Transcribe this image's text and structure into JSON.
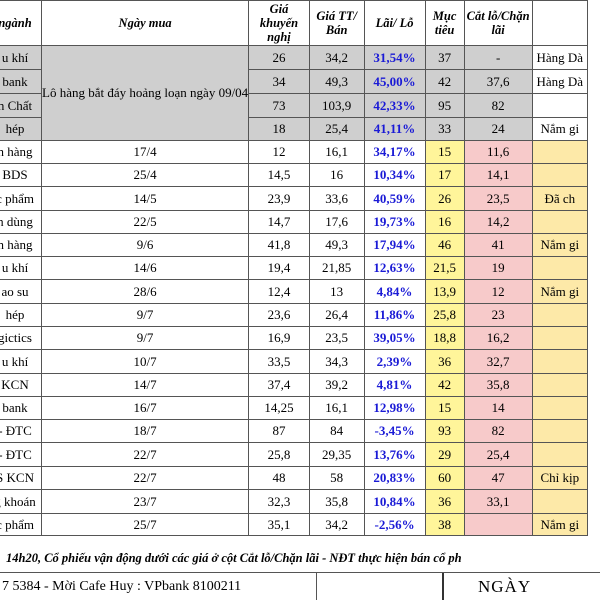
{
  "headers": [
    "ngành",
    "Ngày mua",
    "Giá khuyến nghị",
    "Giá TT/ Bán",
    "Lãi/ Lỗ",
    "Mục tiêu",
    "Cắt lỗ/Chặn lãi",
    ""
  ],
  "lot_note": "Lô hàng bắt đáy hoảng loạn ngày 09/04",
  "rows": [
    {
      "name": "u khí",
      "date": "",
      "rec": "26",
      "price": "34,2",
      "pl": "31,54%",
      "target": "37",
      "stop": "-",
      "note": "Hàng Dà"
    },
    {
      "name": "bank",
      "date": "",
      "rec": "34",
      "price": "49,3",
      "pl": "45,00%",
      "target": "42",
      "stop": "37,6",
      "note": "Hàng Dà"
    },
    {
      "name": "n Chất",
      "date": "",
      "rec": "73",
      "price": "103,9",
      "pl": "42,33%",
      "target": "95",
      "stop": "82",
      "note": ""
    },
    {
      "name": "hép",
      "date": "",
      "rec": "18",
      "price": "25,4",
      "pl": "41,11%",
      "target": "33",
      "stop": "24",
      "note": "Nắm gi"
    },
    {
      "name": "n hàng",
      "date": "17/4",
      "rec": "12",
      "price": "16,1",
      "pl": "34,17%",
      "target": "15",
      "stop": "11,6",
      "note": ""
    },
    {
      "name": "BDS",
      "date": "25/4",
      "rec": "14,5",
      "price": "16",
      "pl": "10,34%",
      "target": "17",
      "stop": "14,1",
      "note": ""
    },
    {
      "name": "c phẩm",
      "date": "14/5",
      "rec": "23,9",
      "price": "33,6",
      "pl": "40,59%",
      "target": "26",
      "stop": "23,5",
      "note": "Đã ch"
    },
    {
      "name": "n dùng",
      "date": "22/5",
      "rec": "14,7",
      "price": "17,6",
      "pl": "19,73%",
      "target": "16",
      "stop": "14,2",
      "note": ""
    },
    {
      "name": "n hàng",
      "date": "9/6",
      "rec": "41,8",
      "price": "49,3",
      "pl": "17,94%",
      "target": "46",
      "stop": "41",
      "note": "Nắm gi"
    },
    {
      "name": "u khí",
      "date": "14/6",
      "rec": "19,4",
      "price": "21,85",
      "pl": "12,63%",
      "target": "21,5",
      "stop": "19",
      "note": ""
    },
    {
      "name": "ao su",
      "date": "28/6",
      "rec": "12,4",
      "price": "13",
      "pl": "4,84%",
      "target": "13,9",
      "stop": "12",
      "note": "Nắm gi"
    },
    {
      "name": "hép",
      "date": "9/7",
      "rec": "23,6",
      "price": "26,4",
      "pl": "11,86%",
      "target": "25,8",
      "stop": "23",
      "note": ""
    },
    {
      "name": "gictics",
      "date": "9/7",
      "rec": "16,9",
      "price": "23,5",
      "pl": "39,05%",
      "target": "18,8",
      "stop": "16,2",
      "note": ""
    },
    {
      "name": "u khí",
      "date": "10/7",
      "rec": "33,5",
      "price": "34,3",
      "pl": "2,39%",
      "target": "36",
      "stop": "32,7",
      "note": ""
    },
    {
      "name": "KCN",
      "date": "14/7",
      "rec": "37,4",
      "price": "39,2",
      "pl": "4,81%",
      "target": "42",
      "stop": "35,8",
      "note": ""
    },
    {
      "name": "bank",
      "date": "16/7",
      "rec": "14,25",
      "price": "16,1",
      "pl": "12,98%",
      "target": "15",
      "stop": "14",
      "note": ""
    },
    {
      "name": "- ĐTC",
      "date": "18/7",
      "rec": "87",
      "price": "84",
      "pl": "-3,45%",
      "target": "93",
      "stop": "82",
      "note": ""
    },
    {
      "name": "- ĐTC",
      "date": "22/7",
      "rec": "25,8",
      "price": "29,35",
      "pl": "13,76%",
      "target": "29",
      "stop": "25,4",
      "note": ""
    },
    {
      "name": "S KCN",
      "date": "22/7",
      "rec": "48",
      "price": "58",
      "pl": "20,83%",
      "target": "60",
      "stop": "47",
      "note": "Chỉ kịp"
    },
    {
      "name": "g khoán",
      "date": "23/7",
      "rec": "32,3",
      "price": "35,8",
      "pl": "10,84%",
      "target": "36",
      "stop": "33,1",
      "note": ""
    },
    {
      "name": "c phẩm",
      "date": "25/7",
      "rec": "35,1",
      "price": "34,2",
      "pl": "-2,56%",
      "target": "38",
      "stop": "",
      "note": "Nắm gi"
    }
  ],
  "footer_note": "14h20, Cổ phiếu vận động dưới các giá ở cột Cắt lỗ/Chặn lãi - NĐT thực hiện bán cổ ph",
  "contact": "7 5384 - Mời Cafe Huy : VPbank 8100211",
  "date_label": "NGÀY"
}
